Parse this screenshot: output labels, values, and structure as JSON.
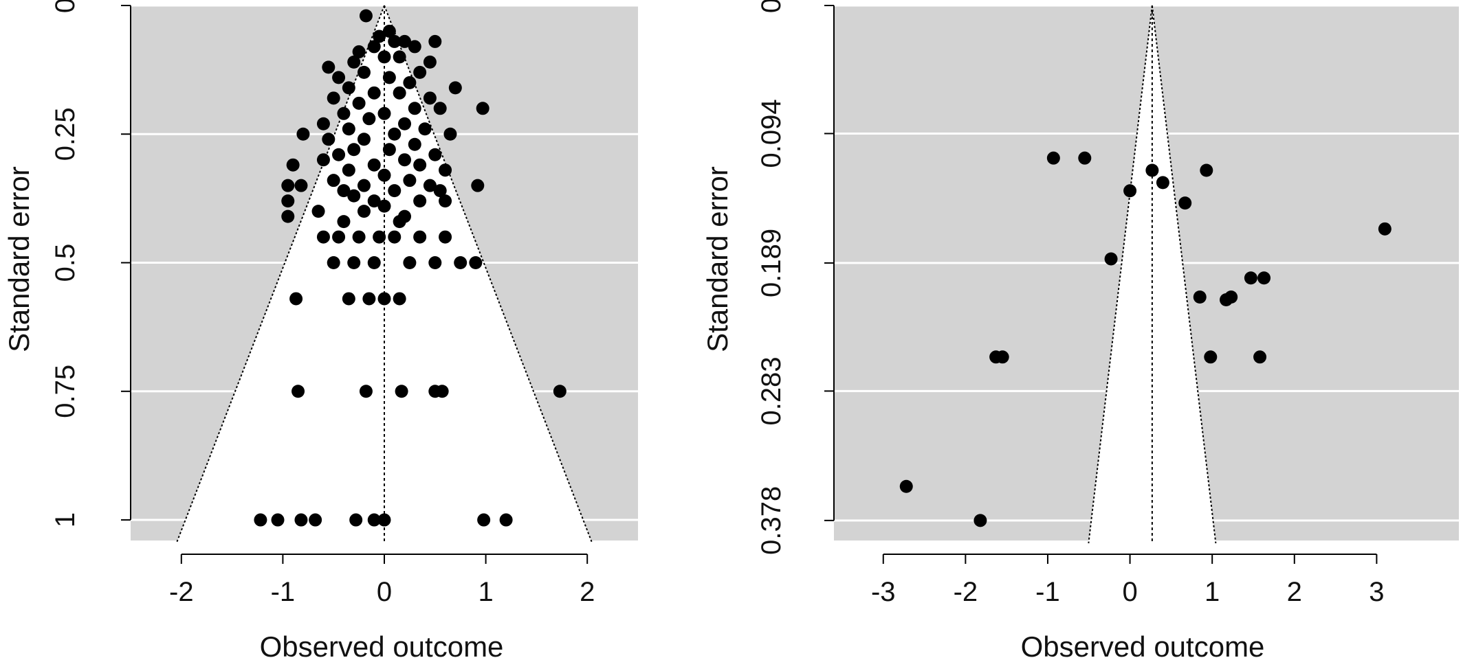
{
  "chart_data": [
    {
      "type": "scatter",
      "subtype": "funnel-plot",
      "xlabel": "Observed outcome",
      "ylabel": "Standard error",
      "xlim": [
        -2.5,
        2.5
      ],
      "ylim": [
        0,
        1.04
      ],
      "y_inverted": true,
      "x_ticks": [
        -2,
        -1,
        0,
        1,
        2
      ],
      "x_tick_labels": [
        "-2",
        "-1",
        "0",
        "1",
        "2"
      ],
      "y_ticks": [
        0,
        0.25,
        0.5,
        0.75,
        1
      ],
      "y_tick_labels": [
        "0",
        "0.25",
        "0.5",
        "0.75",
        "1"
      ],
      "center": 0,
      "funnel_se_max": 1,
      "background_color": "#d3d3d3",
      "funnel_fill_color": "#ffffff",
      "point_color": "#000000",
      "grid": true,
      "points": [
        [
          -0.18,
          0.02
        ],
        [
          0.05,
          0.05
        ],
        [
          -0.05,
          0.06
        ],
        [
          0.1,
          0.07
        ],
        [
          -0.1,
          0.08
        ],
        [
          0.2,
          0.07
        ],
        [
          -0.25,
          0.09
        ],
        [
          0.3,
          0.08
        ],
        [
          0.5,
          0.07
        ],
        [
          0.15,
          0.1
        ],
        [
          -0.3,
          0.11
        ],
        [
          0.0,
          0.1
        ],
        [
          -0.55,
          0.12
        ],
        [
          0.45,
          0.11
        ],
        [
          -0.2,
          0.13
        ],
        [
          0.35,
          0.13
        ],
        [
          -0.45,
          0.14
        ],
        [
          0.05,
          0.14
        ],
        [
          -0.35,
          0.16
        ],
        [
          0.25,
          0.15
        ],
        [
          0.7,
          0.16
        ],
        [
          -0.1,
          0.17
        ],
        [
          0.15,
          0.17
        ],
        [
          -0.5,
          0.18
        ],
        [
          0.45,
          0.18
        ],
        [
          -0.25,
          0.19
        ],
        [
          0.3,
          0.2
        ],
        [
          -0.4,
          0.21
        ],
        [
          0.0,
          0.21
        ],
        [
          0.55,
          0.2
        ],
        [
          0.97,
          0.2
        ],
        [
          -0.15,
          0.22
        ],
        [
          0.2,
          0.23
        ],
        [
          -0.6,
          0.23
        ],
        [
          -0.35,
          0.24
        ],
        [
          0.4,
          0.24
        ],
        [
          0.1,
          0.25
        ],
        [
          -0.55,
          0.26
        ],
        [
          0.65,
          0.25
        ],
        [
          -0.2,
          0.26
        ],
        [
          -0.8,
          0.25
        ],
        [
          0.3,
          0.27
        ],
        [
          -0.3,
          0.28
        ],
        [
          0.05,
          0.28
        ],
        [
          0.5,
          0.29
        ],
        [
          -0.45,
          0.29
        ],
        [
          -0.6,
          0.3
        ],
        [
          0.2,
          0.3
        ],
        [
          -0.1,
          0.31
        ],
        [
          0.35,
          0.31
        ],
        [
          -0.9,
          0.31
        ],
        [
          -0.35,
          0.32
        ],
        [
          0.6,
          0.32
        ],
        [
          0.0,
          0.33
        ],
        [
          -0.5,
          0.34
        ],
        [
          0.25,
          0.34
        ],
        [
          0.45,
          0.35
        ],
        [
          -0.2,
          0.35
        ],
        [
          0.1,
          0.36
        ],
        [
          -0.4,
          0.36
        ],
        [
          0.55,
          0.36
        ],
        [
          -0.95,
          0.35
        ],
        [
          -0.82,
          0.35
        ],
        [
          0.92,
          0.35
        ],
        [
          -0.3,
          0.37
        ],
        [
          0.35,
          0.38
        ],
        [
          -0.1,
          0.38
        ],
        [
          -0.95,
          0.38
        ],
        [
          0.6,
          0.38
        ],
        [
          0.0,
          0.39
        ],
        [
          -0.65,
          0.4
        ],
        [
          -0.2,
          0.4
        ],
        [
          -0.95,
          0.41
        ],
        [
          0.2,
          0.41
        ],
        [
          -0.4,
          0.42
        ],
        [
          0.15,
          0.42
        ],
        [
          -0.6,
          0.45
        ],
        [
          -0.45,
          0.45
        ],
        [
          -0.25,
          0.45
        ],
        [
          -0.05,
          0.45
        ],
        [
          0.1,
          0.45
        ],
        [
          0.35,
          0.45
        ],
        [
          0.6,
          0.45
        ],
        [
          -0.5,
          0.5
        ],
        [
          -0.3,
          0.5
        ],
        [
          -0.1,
          0.5
        ],
        [
          0.25,
          0.5
        ],
        [
          0.5,
          0.5
        ],
        [
          0.75,
          0.5
        ],
        [
          0.9,
          0.5
        ],
        [
          -0.87,
          0.57
        ],
        [
          -0.35,
          0.57
        ],
        [
          -0.15,
          0.57
        ],
        [
          0.0,
          0.57
        ],
        [
          0.15,
          0.57
        ],
        [
          -0.85,
          0.75
        ],
        [
          -0.18,
          0.75
        ],
        [
          0.17,
          0.75
        ],
        [
          0.5,
          0.75
        ],
        [
          0.57,
          0.75
        ],
        [
          1.73,
          0.75
        ],
        [
          -1.22,
          1.0
        ],
        [
          -1.05,
          1.0
        ],
        [
          -0.82,
          1.0
        ],
        [
          -0.68,
          1.0
        ],
        [
          -0.28,
          1.0
        ],
        [
          -0.1,
          1.0
        ],
        [
          0.0,
          1.0
        ],
        [
          0.98,
          1.0
        ],
        [
          1.2,
          1.0
        ]
      ]
    },
    {
      "type": "scatter",
      "subtype": "funnel-plot",
      "xlabel": "Observed outcome",
      "ylabel": "Standard error",
      "xlim": [
        -3.6,
        4.0
      ],
      "ylim": [
        0,
        0.3927
      ],
      "y_inverted": true,
      "x_ticks": [
        -3,
        -2,
        -1,
        0,
        1,
        2,
        3
      ],
      "x_tick_labels": [
        "-3",
        "-2",
        "-1",
        "0",
        "1",
        "2",
        "3"
      ],
      "y_ticks": [
        0,
        0.094,
        0.189,
        0.283,
        0.378
      ],
      "y_tick_labels": [
        "0",
        "0.094",
        "0.189",
        "0.283",
        "0.378"
      ],
      "center": 0.27,
      "funnel_se_max": 0.378,
      "background_color": "#d3d3d3",
      "funnel_fill_color": "#ffffff",
      "point_color": "#000000",
      "grid": true,
      "points": [
        [
          -0.93,
          0.112
        ],
        [
          -0.55,
          0.112
        ],
        [
          0.27,
          0.121
        ],
        [
          0.93,
          0.121
        ],
        [
          0.4,
          0.13
        ],
        [
          0.0,
          0.136
        ],
        [
          0.67,
          0.145
        ],
        [
          3.1,
          0.164
        ],
        [
          -0.23,
          0.186
        ],
        [
          1.47,
          0.2
        ],
        [
          1.63,
          0.2
        ],
        [
          0.85,
          0.214
        ],
        [
          1.17,
          0.216
        ],
        [
          1.23,
          0.214
        ],
        [
          -1.63,
          0.258
        ],
        [
          -1.55,
          0.258
        ],
        [
          0.98,
          0.258
        ],
        [
          1.58,
          0.258
        ],
        [
          -2.72,
          0.353
        ],
        [
          -1.82,
          0.378
        ]
      ]
    }
  ]
}
